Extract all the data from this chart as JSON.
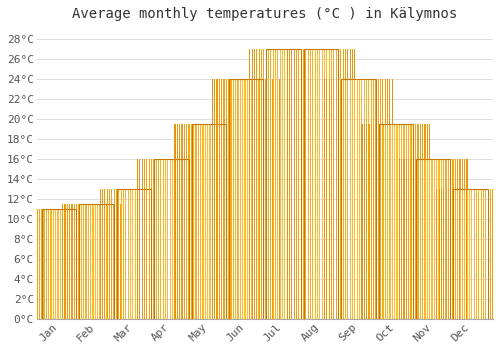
{
  "title": "Average monthly temperatures (°C ) in Kälymnos",
  "months": [
    "Jan",
    "Feb",
    "Mar",
    "Apr",
    "May",
    "Jun",
    "Jul",
    "Aug",
    "Sep",
    "Oct",
    "Nov",
    "Dec"
  ],
  "values": [
    11,
    11.5,
    13,
    16,
    19.5,
    24,
    27,
    27,
    24,
    19.5,
    16,
    13
  ],
  "bar_color_left": "#E8940A",
  "bar_color_center": "#FFB830",
  "bar_color_right": "#E8940A",
  "bar_edge_color": "#C87800",
  "background_color": "#FFFFFF",
  "plot_bg_color": "#FFFFFF",
  "grid_color": "#DDDDDD",
  "text_color": "#555555",
  "title_color": "#333333",
  "ylim": [
    0,
    29
  ],
  "yticks": [
    0,
    2,
    4,
    6,
    8,
    10,
    12,
    14,
    16,
    18,
    20,
    22,
    24,
    26,
    28
  ],
  "title_fontsize": 10,
  "tick_fontsize": 8,
  "bar_width": 0.92,
  "font_family": "monospace"
}
